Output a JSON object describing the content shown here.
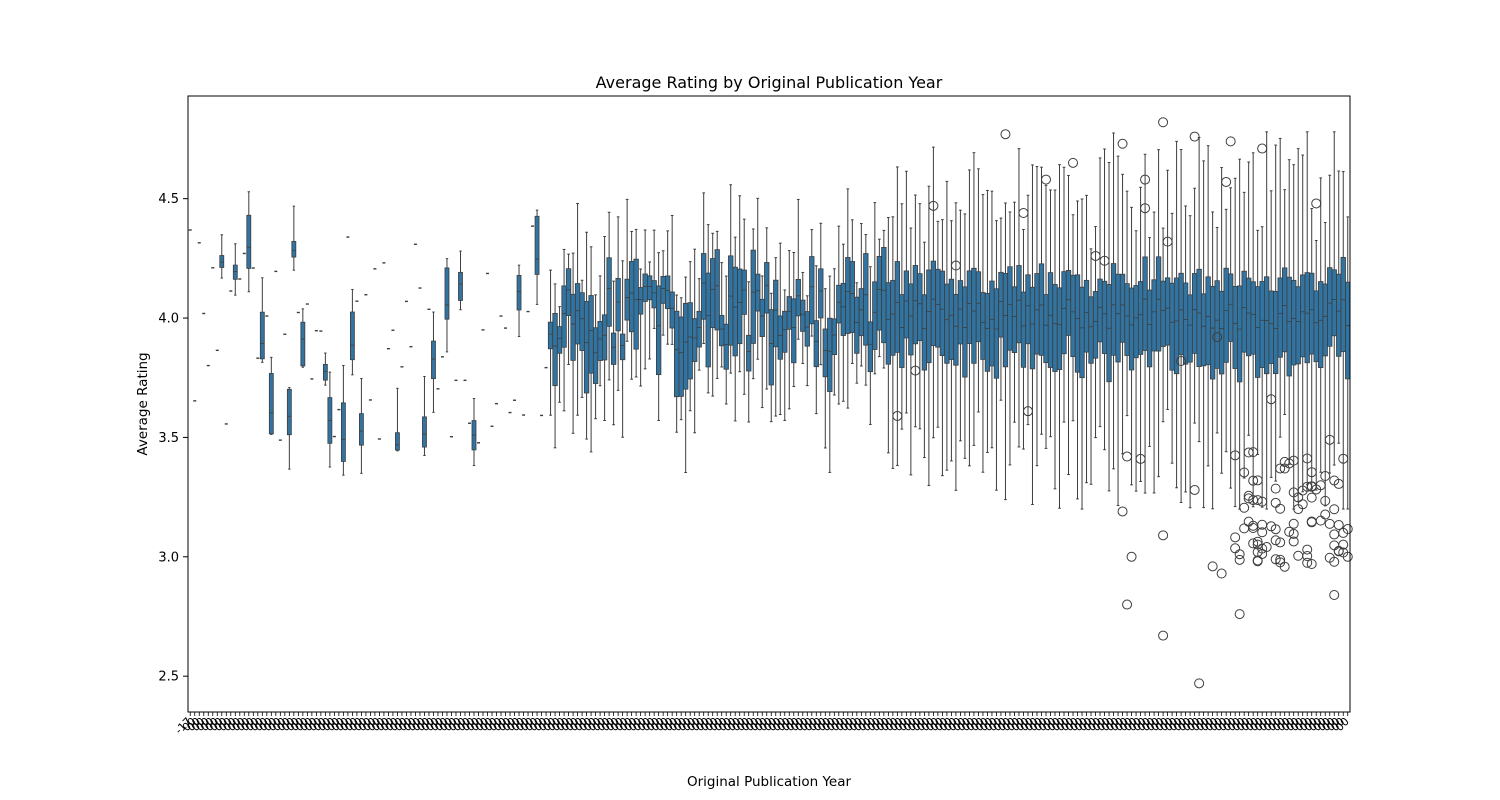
{
  "chart_data": {
    "type": "box",
    "title": "Average Rating by Original Publication Year",
    "xlabel": "Original Publication Year",
    "ylabel": "Average Rating",
    "ylim": [
      2.35,
      4.93
    ],
    "yticks": [
      2.5,
      3.0,
      3.5,
      4.0,
      4.5
    ],
    "ytick_labels": [
      "2.5",
      "3.0",
      "3.5",
      "4.0",
      "4.5"
    ],
    "category_count": 258,
    "x_tick_labels_note": "one rotated tick label per publication year; labels overlap and are illegible, the first reads \"-17…\"",
    "box_color": "#3274a1",
    "line_color": "#3d3d3d",
    "grid": false,
    "legend": "none",
    "box_sample": [
      {
        "q1": 3.93,
        "median": 4.01,
        "q3": 4.1,
        "whislo": 3.84,
        "whishi": 4.25
      },
      {
        "q1": 3.8,
        "median": 3.9,
        "q3": 3.95,
        "whislo": 3.75,
        "whishi": 4.05
      },
      {
        "q1": 3.55,
        "median": 3.62,
        "q3": 3.7,
        "whislo": 3.48,
        "whishi": 3.8
      },
      {
        "q1": 4.0,
        "median": 4.14,
        "q3": 4.31,
        "whislo": 3.85,
        "whishi": 4.49
      },
      {
        "q1": 4.2,
        "median": 4.3,
        "q3": 4.42,
        "whislo": 4.05,
        "whishi": 4.55
      },
      {
        "q1": 3.75,
        "median": 3.9,
        "q3": 4.0,
        "whislo": 3.5,
        "whishi": 4.37
      },
      {
        "q1": 3.6,
        "median": 3.9,
        "q3": 4.1,
        "whislo": 3.35,
        "whishi": 4.61
      },
      {
        "q1": 3.9,
        "median": 4.05,
        "q3": 4.2,
        "whislo": 3.35,
        "whishi": 4.5
      },
      {
        "q1": 3.9,
        "median": 4.03,
        "q3": 4.18,
        "whislo": 3.4,
        "whishi": 4.6
      },
      {
        "q1": 3.85,
        "median": 4.02,
        "q3": 4.18,
        "whislo": 3.3,
        "whishi": 4.76
      }
    ],
    "outliers_sample": [
      4.82,
      4.77,
      4.76,
      4.74,
      4.73,
      4.71,
      4.65,
      4.58,
      4.58,
      4.57,
      4.48,
      4.47,
      4.46,
      4.44,
      4.32,
      4.26,
      4.24,
      4.22,
      3.92,
      3.82,
      3.78,
      3.66,
      3.61,
      3.59,
      3.49,
      3.42,
      3.41,
      3.28,
      3.22,
      3.19,
      3.13,
      3.09,
      3.0,
      2.96,
      2.93,
      2.84,
      2.8,
      2.76,
      2.67,
      2.47
    ]
  }
}
